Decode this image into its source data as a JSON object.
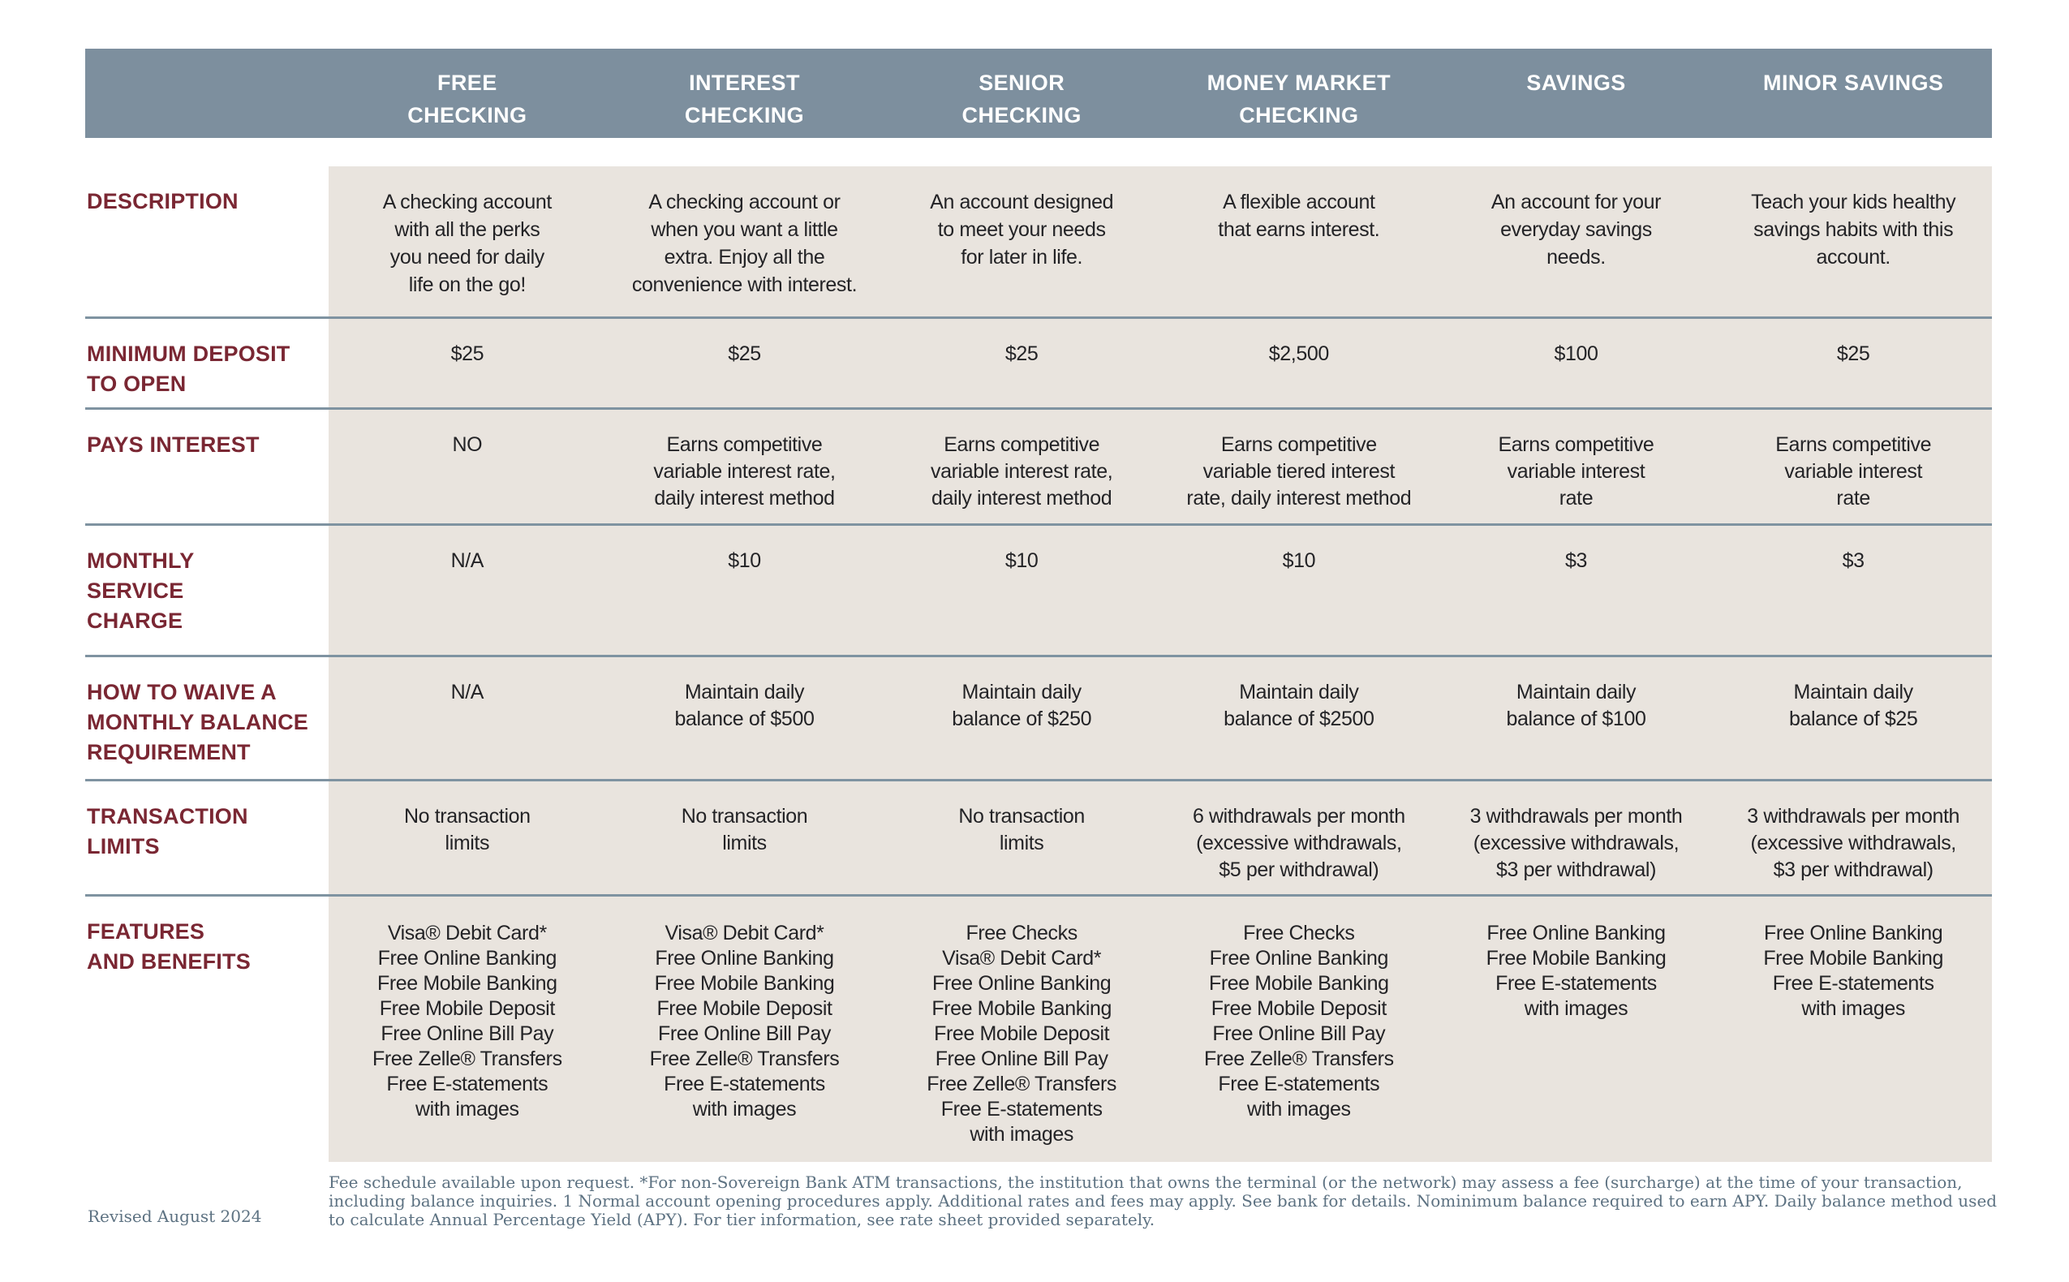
{
  "colors": {
    "header_bg": "#7d8f9e",
    "cell_bg": "#e9e4de",
    "label_color": "#7a2733",
    "body_text": "#232326",
    "divider": "#7f93a1",
    "footnote_color": "#5d7282"
  },
  "table": {
    "columns": [
      "FREE\nCHECKING",
      "INTEREST\nCHECKING",
      "SENIOR\nCHECKING",
      "MONEY MARKET\nCHECKING",
      "SAVINGS",
      "MINOR SAVINGS"
    ],
    "rows": [
      {
        "label": "DESCRIPTION",
        "cells": [
          "A checking account\nwith all the perks\nyou need for daily\nlife on the go!",
          "A checking account or\nwhen you want a little\nextra. Enjoy all the\nconvenience with interest.",
          "An account designed\nto meet your needs\nfor later in life.",
          "A flexible account\nthat earns interest.",
          "An account for your\neveryday savings\nneeds.",
          "Teach your kids healthy\nsavings habits with this\naccount."
        ]
      },
      {
        "label": "MINIMUM DEPOSIT\nTO OPEN",
        "cells": [
          "$25",
          "$25",
          "$25",
          "$2,500",
          "$100",
          "$25"
        ]
      },
      {
        "label": "PAYS INTEREST",
        "cells": [
          "NO",
          "Earns competitive\nvariable interest rate,\ndaily interest method",
          "Earns competitive\nvariable interest rate,\ndaily interest method",
          "Earns competitive\nvariable tiered interest\nrate, daily interest method",
          "Earns competitive\nvariable interest\nrate",
          "Earns competitive\nvariable interest\nrate"
        ]
      },
      {
        "label": "MONTHLY\nSERVICE\nCHARGE",
        "cells": [
          "N/A",
          "$10",
          "$10",
          "$10",
          "$3",
          "$3"
        ]
      },
      {
        "label": "HOW TO WAIVE A\nMONTHLY BALANCE\nREQUIREMENT",
        "cells": [
          "N/A",
          "Maintain daily\nbalance of $500",
          "Maintain daily\nbalance of $250",
          "Maintain daily\nbalance of $2500",
          "Maintain daily\nbalance of $100",
          "Maintain daily\nbalance of $25"
        ]
      },
      {
        "label": "TRANSACTION\nLIMITS",
        "cells": [
          "No transaction\nlimits",
          "No transaction\nlimits",
          "No transaction\nlimits",
          "6 withdrawals per month\n(excessive withdrawals,\n$5 per withdrawal)",
          "3 withdrawals per month\n(excessive withdrawals,\n$3 per withdrawal)",
          "3 withdrawals per month\n(excessive withdrawals,\n$3 per withdrawal)"
        ]
      },
      {
        "label": "FEATURES\nAND BENEFITS",
        "cells": [
          "Visa® Debit Card*\nFree Online Banking\nFree Mobile Banking\nFree Mobile Deposit\nFree Online Bill Pay\nFree Zelle® Transfers\nFree E-statements\nwith images",
          "Visa® Debit Card*\nFree Online Banking\nFree Mobile Banking\nFree Mobile Deposit\nFree Online Bill Pay\nFree Zelle® Transfers\nFree E-statements\nwith images",
          "Free Checks\nVisa® Debit Card*\nFree Online Banking\nFree Mobile Banking\nFree Mobile Deposit\nFree Online Bill Pay\nFree Zelle® Transfers\nFree E-statements\nwith images",
          "Free Checks\nFree Online Banking\nFree Mobile Banking\nFree Mobile Deposit\nFree Online Bill Pay\nFree Zelle® Transfers\nFree E-statements\nwith images",
          "Free Online Banking\nFree Mobile Banking\nFree E-statements\nwith images",
          "Free Online Banking\nFree Mobile Banking\nFree E-statements\nwith images"
        ]
      }
    ]
  },
  "footer": {
    "revised": "Revised August 2024",
    "fine_print": "Fee schedule available upon request. *For non-Sovereign Bank ATM transactions, the institution that owns the terminal (or the network) may assess a fee (surcharge) at the time of your transaction, including balance inquiries. 1 Normal account opening procedures apply. Additional rates and fees may apply. See bank for details. Nominimum balance required to earn APY. Daily balance method used to calculate Annual Percentage Yield (APY). For tier information, see rate sheet provided separately."
  }
}
